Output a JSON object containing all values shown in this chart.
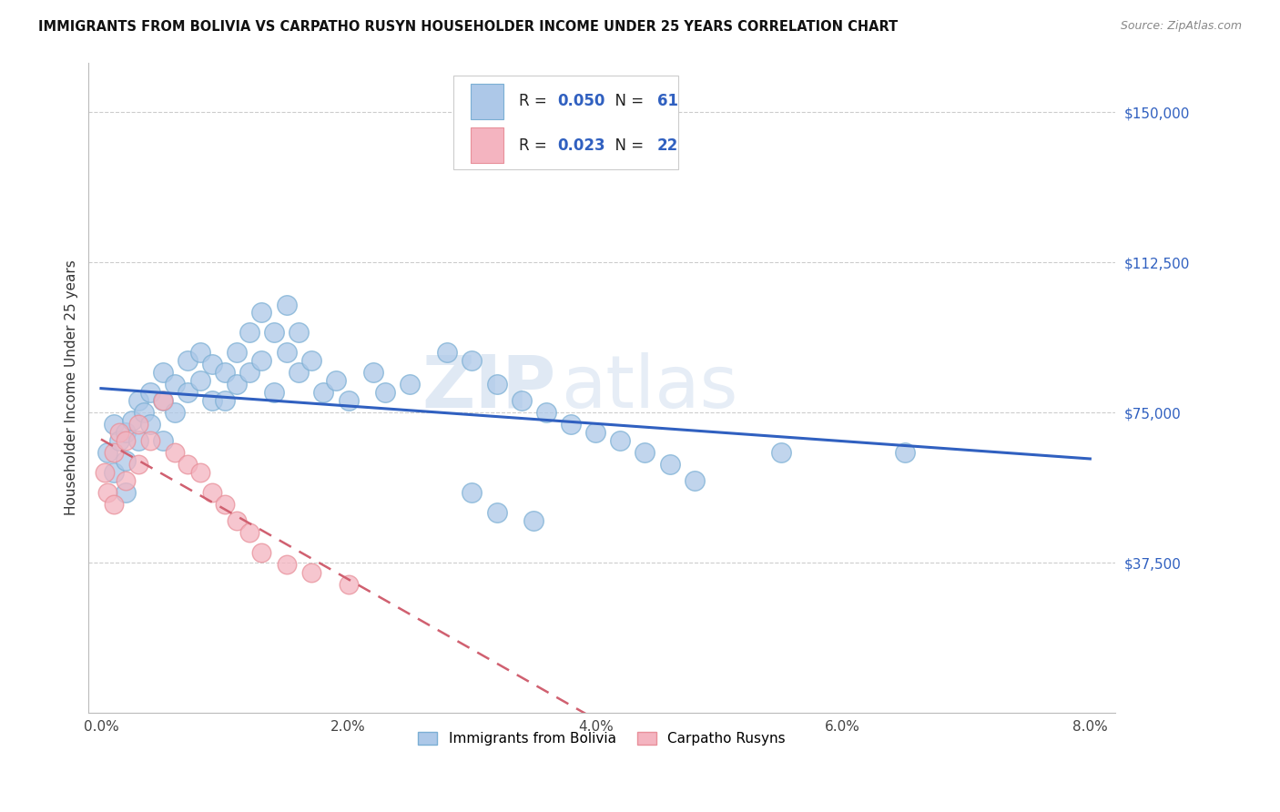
{
  "title": "IMMIGRANTS FROM BOLIVIA VS CARPATHO RUSYN HOUSEHOLDER INCOME UNDER 25 YEARS CORRELATION CHART",
  "source": "Source: ZipAtlas.com",
  "ylabel": "Householder Income Under 25 years",
  "xlabel_ticks": [
    "0.0%",
    "2.0%",
    "4.0%",
    "6.0%",
    "8.0%"
  ],
  "xlabel_vals": [
    0.0,
    0.02,
    0.04,
    0.06,
    0.08
  ],
  "ytick_labels": [
    "$37,500",
    "$75,000",
    "$112,500",
    "$150,000"
  ],
  "ytick_vals": [
    37500,
    75000,
    112500,
    150000
  ],
  "ylim": [
    0,
    162500
  ],
  "xlim": [
    -0.001,
    0.082
  ],
  "bolivia_color": "#adc8e8",
  "bolivia_edge": "#7bafd4",
  "carpatho_color": "#f4b4c0",
  "carpatho_edge": "#e8909a",
  "bolivia_R": 0.05,
  "bolivia_N": 61,
  "carpatho_R": 0.023,
  "carpatho_N": 22,
  "line_bolivia_color": "#3060c0",
  "line_carpatho_color": "#d06070",
  "legend_label_bolivia": "Immigrants from Bolivia",
  "legend_label_carpatho": "Carpatho Rusyns",
  "watermark_zip": "ZIP",
  "watermark_atlas": "atlas",
  "bolivia_x": [
    0.0005,
    0.001,
    0.001,
    0.0015,
    0.002,
    0.002,
    0.002,
    0.0025,
    0.003,
    0.003,
    0.0035,
    0.004,
    0.004,
    0.005,
    0.005,
    0.005,
    0.006,
    0.006,
    0.007,
    0.007,
    0.008,
    0.008,
    0.009,
    0.009,
    0.01,
    0.01,
    0.011,
    0.011,
    0.012,
    0.012,
    0.013,
    0.013,
    0.014,
    0.014,
    0.015,
    0.015,
    0.016,
    0.016,
    0.017,
    0.018,
    0.019,
    0.02,
    0.022,
    0.023,
    0.025,
    0.028,
    0.03,
    0.032,
    0.034,
    0.036,
    0.038,
    0.04,
    0.042,
    0.044,
    0.046,
    0.048,
    0.055,
    0.065,
    0.03,
    0.032,
    0.035
  ],
  "bolivia_y": [
    65000,
    72000,
    60000,
    68000,
    70000,
    63000,
    55000,
    73000,
    68000,
    78000,
    75000,
    80000,
    72000,
    85000,
    78000,
    68000,
    82000,
    75000,
    88000,
    80000,
    90000,
    83000,
    87000,
    78000,
    85000,
    78000,
    90000,
    82000,
    95000,
    85000,
    100000,
    88000,
    95000,
    80000,
    102000,
    90000,
    95000,
    85000,
    88000,
    80000,
    83000,
    78000,
    85000,
    80000,
    82000,
    90000,
    88000,
    82000,
    78000,
    75000,
    72000,
    70000,
    68000,
    65000,
    62000,
    58000,
    65000,
    65000,
    55000,
    50000,
    48000
  ],
  "carpatho_x": [
    0.0003,
    0.0005,
    0.001,
    0.001,
    0.0015,
    0.002,
    0.002,
    0.003,
    0.003,
    0.004,
    0.005,
    0.006,
    0.007,
    0.008,
    0.009,
    0.01,
    0.011,
    0.012,
    0.013,
    0.015,
    0.017,
    0.02
  ],
  "carpatho_y": [
    60000,
    55000,
    65000,
    52000,
    70000,
    68000,
    58000,
    72000,
    62000,
    68000,
    78000,
    65000,
    62000,
    60000,
    55000,
    52000,
    48000,
    45000,
    40000,
    37000,
    35000,
    32000
  ]
}
